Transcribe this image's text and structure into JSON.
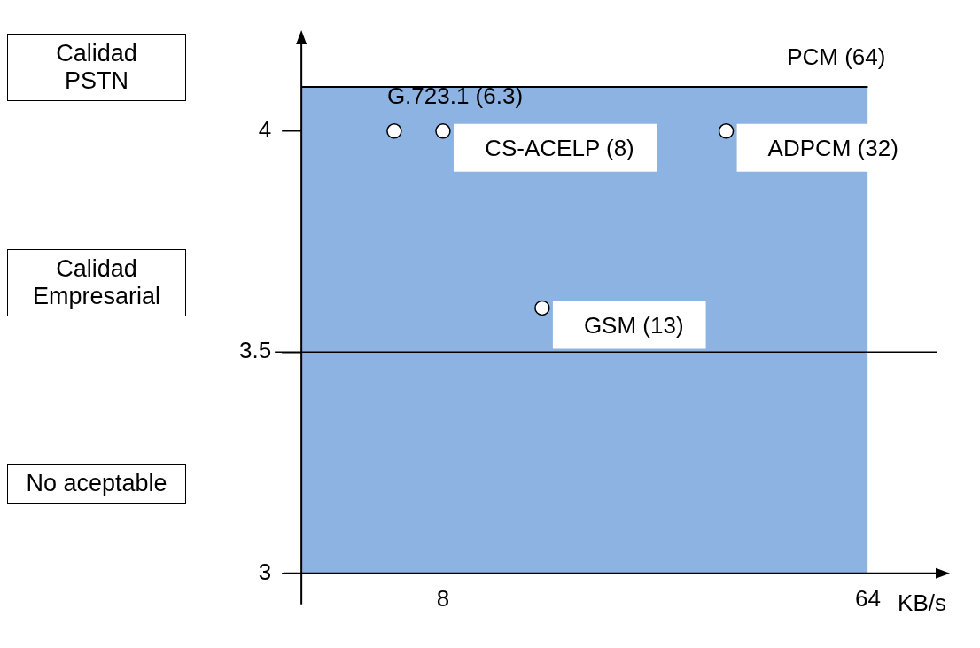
{
  "chart_data": {
    "type": "scatter",
    "xlabel": "KB/s",
    "log": "x",
    "xlim": [
      4,
      90
    ],
    "xticks": [
      8,
      64
    ],
    "ylim": [
      3,
      4.2
    ],
    "yticks": [
      3,
      3.5,
      4
    ],
    "grid": false,
    "legend": false,
    "series": [
      {
        "type": "area",
        "color": "#8db3e2",
        "x": [
          4,
          64
        ],
        "values": [
          4.1,
          4.1
        ]
      },
      {
        "marker": "circle",
        "color": "#ffffff",
        "x": [
          6.3,
          8,
          32,
          13
        ],
        "values": [
          4.0,
          4.0,
          4.0,
          3.6
        ]
      }
    ],
    "ref_lines": [
      {
        "axis": "y",
        "value": 3.5,
        "color": "#000000"
      }
    ],
    "annotations": [
      "Calidad\nPSTN",
      "Calidad\nEmpresarial",
      "No aceptable",
      {
        "text": "G.723.1 (6.3)",
        "x": 6.3,
        "y": 4.0
      },
      {
        "text": "CS-ACELP (8)",
        "x": 8,
        "y": 4.0
      },
      {
        "text": "ADPCM (32)",
        "x": 32,
        "y": 4.0
      },
      {
        "text": "GSM (13)",
        "x": 13,
        "y": 3.6
      },
      {
        "text": "PCM (64)",
        "x": 64,
        "y": 4.1
      }
    ]
  }
}
